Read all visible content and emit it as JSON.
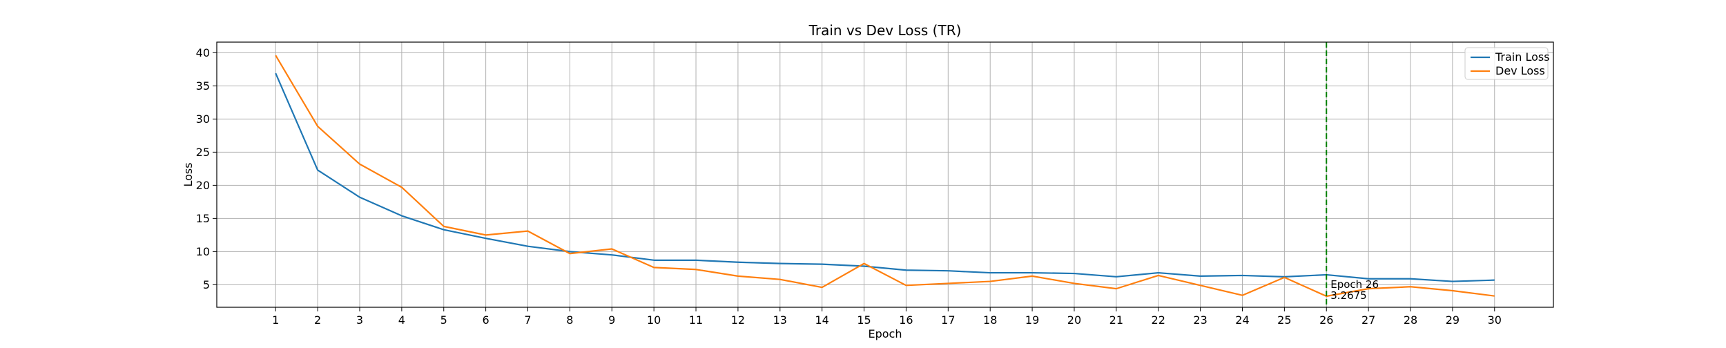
{
  "chart_data": {
    "type": "line",
    "title": "Train vs Dev Loss (TR)",
    "xlabel": "Epoch",
    "ylabel": "Loss",
    "x": [
      1,
      2,
      3,
      4,
      5,
      6,
      7,
      8,
      9,
      10,
      11,
      12,
      13,
      14,
      15,
      16,
      17,
      18,
      19,
      20,
      21,
      22,
      23,
      24,
      25,
      26,
      27,
      28,
      29,
      30
    ],
    "xlim": [
      -0.4,
      31.4
    ],
    "ylim": [
      1.6,
      41.6
    ],
    "yticks": [
      5,
      10,
      15,
      20,
      25,
      30,
      35,
      40
    ],
    "grid": true,
    "legend_position": "top-right",
    "series": [
      {
        "name": "Train Loss",
        "color": "#1f77b4",
        "values": [
          36.9,
          22.3,
          18.2,
          15.4,
          13.3,
          12.0,
          10.8,
          10.0,
          9.5,
          8.7,
          8.7,
          8.4,
          8.2,
          8.1,
          7.8,
          7.2,
          7.1,
          6.8,
          6.8,
          6.7,
          6.2,
          6.8,
          6.3,
          6.4,
          6.2,
          6.5,
          5.9,
          5.9,
          5.5,
          5.7
        ]
      },
      {
        "name": "Dev Loss",
        "color": "#ff7f0e",
        "values": [
          39.6,
          28.9,
          23.2,
          19.7,
          13.8,
          12.5,
          13.1,
          9.7,
          10.4,
          7.6,
          7.3,
          6.3,
          5.8,
          4.6,
          8.2,
          4.9,
          5.2,
          5.5,
          6.3,
          5.2,
          4.4,
          6.4,
          4.9,
          3.4,
          6.1,
          3.2675,
          4.4,
          4.7,
          4.1,
          3.3
        ]
      }
    ],
    "best_marker": {
      "epoch": 26,
      "value": 3.2675,
      "color": "#008000",
      "label_line1": "Epoch 26",
      "label_line2": "3.2675"
    }
  }
}
